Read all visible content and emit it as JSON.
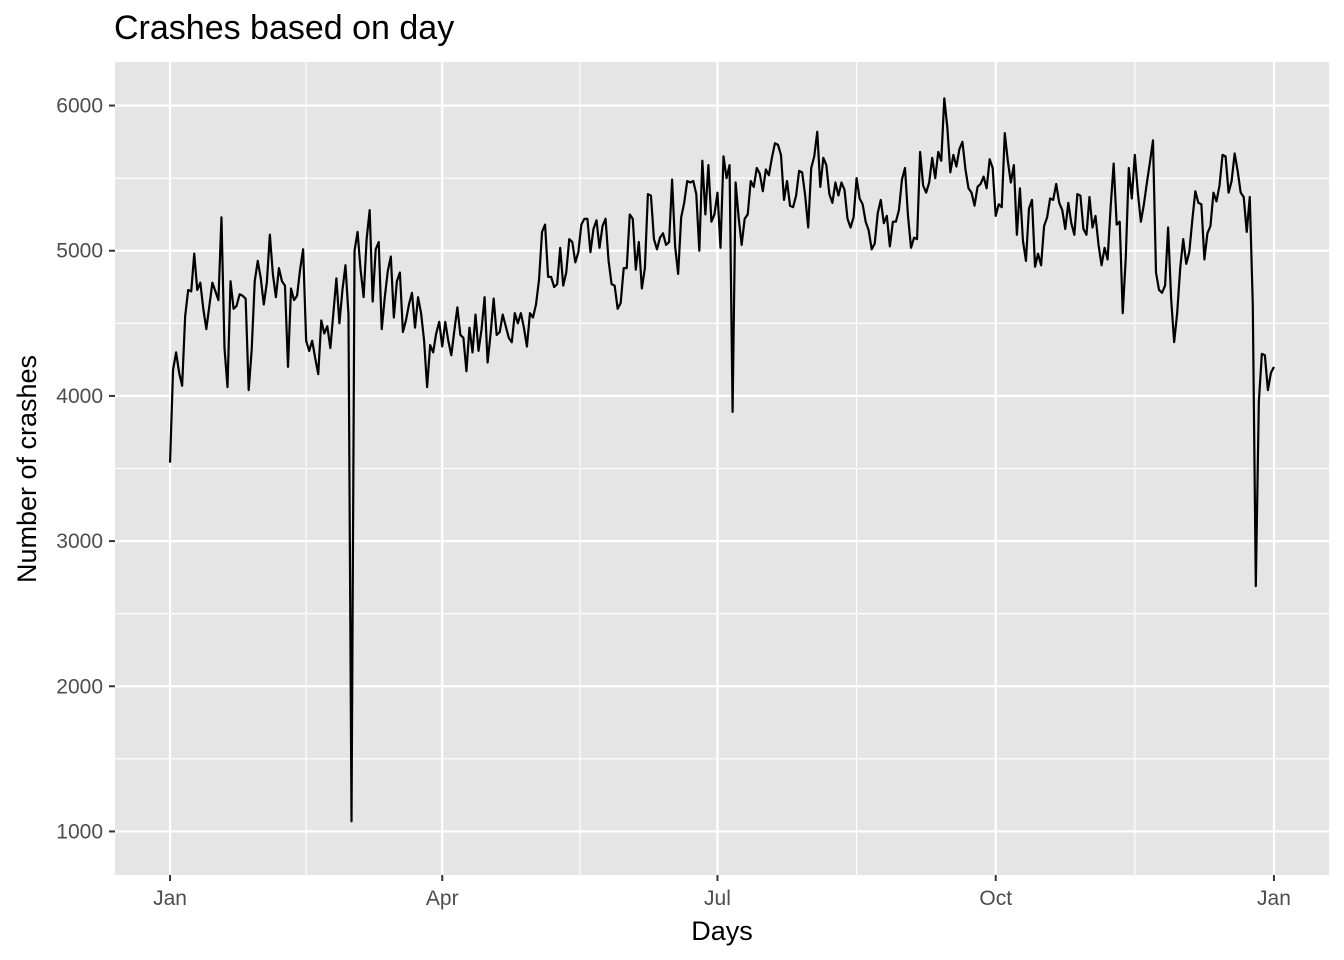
{
  "chart_data": {
    "type": "line",
    "title": "Crashes based on day",
    "xlabel": "Days",
    "ylabel": "Number of crashes",
    "x_ticks": [
      {
        "label": "Jan",
        "day": 0
      },
      {
        "label": "Apr",
        "day": 90
      },
      {
        "label": "Jul",
        "day": 181
      },
      {
        "label": "Oct",
        "day": 273
      },
      {
        "label": "Jan",
        "day": 365
      }
    ],
    "y_ticks": [
      1000,
      2000,
      3000,
      4000,
      5000,
      6000
    ],
    "ylim": [
      700,
      6300
    ],
    "grid": true,
    "legend": "none",
    "colors": {
      "panel": "#e5e5e5",
      "grid": "#ffffff",
      "line": "#000000",
      "tick_text": "#4d4d4d"
    },
    "series": [
      {
        "values": [
          3540,
          4180,
          4300,
          4160,
          4070,
          4550,
          4730,
          4720,
          4980,
          4730,
          4780,
          4600,
          4460,
          4620,
          4780,
          4720,
          4660,
          5230,
          4330,
          4060,
          4790,
          4600,
          4620,
          4700,
          4690,
          4670,
          4040,
          4320,
          4790,
          4930,
          4810,
          4630,
          4780,
          5110,
          4840,
          4680,
          4880,
          4790,
          4760,
          4200,
          4740,
          4660,
          4690,
          4870,
          5010,
          4380,
          4310,
          4380,
          4260,
          4150,
          4520,
          4430,
          4480,
          4330,
          4570,
          4810,
          4500,
          4730,
          4900,
          4560,
          1070,
          5000,
          5130,
          4870,
          4680,
          5080,
          5280,
          4650,
          5010,
          5060,
          4460,
          4680,
          4860,
          4960,
          4540,
          4790,
          4850,
          4440,
          4520,
          4630,
          4710,
          4470,
          4680,
          4570,
          4380,
          4060,
          4350,
          4300,
          4430,
          4510,
          4340,
          4510,
          4380,
          4280,
          4450,
          4610,
          4420,
          4400,
          4170,
          4470,
          4300,
          4560,
          4310,
          4460,
          4680,
          4230,
          4430,
          4670,
          4420,
          4440,
          4560,
          4480,
          4400,
          4370,
          4570,
          4500,
          4570,
          4470,
          4340,
          4570,
          4540,
          4630,
          4800,
          5130,
          5180,
          4820,
          4820,
          4750,
          4770,
          5020,
          4760,
          4850,
          5080,
          5060,
          4920,
          4990,
          5180,
          5220,
          5220,
          4990,
          5150,
          5210,
          5020,
          5170,
          5220,
          4930,
          4770,
          4760,
          4600,
          4640,
          4880,
          4880,
          5250,
          5220,
          4870,
          5060,
          4740,
          4880,
          5390,
          5380,
          5080,
          5010,
          5090,
          5120,
          5040,
          5060,
          5490,
          5030,
          4840,
          5230,
          5330,
          5480,
          5470,
          5480,
          5390,
          5000,
          5620,
          5250,
          5590,
          5200,
          5250,
          5400,
          5020,
          5650,
          5500,
          5590,
          3890,
          5470,
          5230,
          5040,
          5220,
          5250,
          5480,
          5440,
          5570,
          5530,
          5410,
          5560,
          5520,
          5640,
          5740,
          5730,
          5660,
          5350,
          5480,
          5310,
          5300,
          5380,
          5550,
          5540,
          5380,
          5160,
          5570,
          5650,
          5820,
          5440,
          5640,
          5590,
          5390,
          5330,
          5470,
          5380,
          5470,
          5420,
          5220,
          5160,
          5230,
          5500,
          5360,
          5320,
          5200,
          5140,
          5010,
          5050,
          5260,
          5350,
          5190,
          5240,
          5030,
          5200,
          5200,
          5280,
          5490,
          5570,
          5240,
          5020,
          5090,
          5080,
          5680,
          5450,
          5400,
          5470,
          5640,
          5500,
          5680,
          5620,
          6050,
          5850,
          5540,
          5660,
          5580,
          5700,
          5750,
          5560,
          5430,
          5400,
          5310,
          5440,
          5460,
          5510,
          5430,
          5630,
          5570,
          5240,
          5320,
          5300,
          5810,
          5620,
          5470,
          5590,
          5110,
          5430,
          5070,
          4930,
          5290,
          5350,
          4890,
          4980,
          4900,
          5170,
          5230,
          5360,
          5350,
          5460,
          5330,
          5280,
          5150,
          5330,
          5190,
          5110,
          5390,
          5380,
          5150,
          5110,
          5370,
          5160,
          5240,
          5040,
          4900,
          5020,
          4940,
          5300,
          5600,
          5180,
          5200,
          4570,
          4950,
          5570,
          5360,
          5660,
          5400,
          5200,
          5320,
          5470,
          5610,
          5760,
          4850,
          4730,
          4710,
          4760,
          5160,
          4670,
          4370,
          4570,
          4880,
          5080,
          4910,
          4990,
          5210,
          5410,
          5330,
          5320,
          4940,
          5120,
          5170,
          5400,
          5340,
          5450,
          5660,
          5650,
          5400,
          5480,
          5670,
          5550,
          5400,
          5370,
          5130,
          5370,
          4630,
          2690,
          3960,
          4290,
          4280,
          4040,
          4160,
          4200
        ]
      }
    ]
  }
}
